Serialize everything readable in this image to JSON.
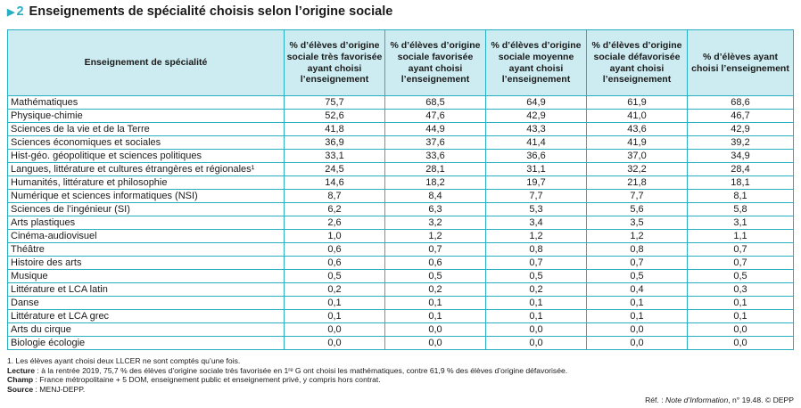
{
  "title": {
    "number": "2",
    "text": "Enseignements de spécialité choisis selon l’origine sociale"
  },
  "table": {
    "headers": [
      "Enseignement de spécialité",
      "% d’élèves d’origine sociale très favorisée ayant choisi l’enseignement",
      "% d’élèves d’origine sociale favorisée ayant choisi l’enseignement",
      "% d’élèves d’origine sociale moyenne ayant choisi l’enseignement",
      "% d’élèves d’origine sociale défavorisée ayant choisi l’enseignement",
      "% d’élèves ayant choisi l’enseignement"
    ],
    "rows": [
      {
        "label": "Mathématiques",
        "values": [
          "75,7",
          "68,5",
          "64,9",
          "61,9",
          "68,6"
        ]
      },
      {
        "label": "Physique-chimie",
        "values": [
          "52,6",
          "47,6",
          "42,9",
          "41,0",
          "46,7"
        ]
      },
      {
        "label": "Sciences de la vie et de la Terre",
        "values": [
          "41,8",
          "44,9",
          "43,3",
          "43,6",
          "42,9"
        ]
      },
      {
        "label": "Sciences économiques et sociales",
        "values": [
          "36,9",
          "37,6",
          "41,4",
          "41,9",
          "39,2"
        ]
      },
      {
        "label": "Hist-géo. géopolitique et sciences politiques",
        "values": [
          "33,1",
          "33,6",
          "36,6",
          "37,0",
          "34,9"
        ]
      },
      {
        "label": "Langues, littérature et cultures étrangères et régionales¹",
        "values": [
          "24,5",
          "28,1",
          "31,1",
          "32,2",
          "28,4"
        ]
      },
      {
        "label": "Humanités, littérature et philosophie",
        "values": [
          "14,6",
          "18,2",
          "19,7",
          "21,8",
          "18,1"
        ]
      },
      {
        "label": "Numérique et sciences informatiques (NSI)",
        "values": [
          "8,7",
          "8,4",
          "7,7",
          "7,7",
          "8,1"
        ]
      },
      {
        "label": "Sciences de l’ingénieur (SI)",
        "values": [
          "6,2",
          "6,3",
          "5,3",
          "5,6",
          "5,8"
        ]
      },
      {
        "label": "Arts plastiques",
        "values": [
          "2,6",
          "3,2",
          "3,4",
          "3,5",
          "3,1"
        ]
      },
      {
        "label": "Cinéma-audiovisuel",
        "values": [
          "1,0",
          "1,2",
          "1,2",
          "1,2",
          "1,1"
        ]
      },
      {
        "label": "Théâtre",
        "values": [
          "0,6",
          "0,7",
          "0,8",
          "0,8",
          "0,7"
        ]
      },
      {
        "label": "Histoire des arts",
        "values": [
          "0,6",
          "0,6",
          "0,7",
          "0,7",
          "0,7"
        ]
      },
      {
        "label": "Musique",
        "values": [
          "0,5",
          "0,5",
          "0,5",
          "0,5",
          "0,5"
        ]
      },
      {
        "label": "Littérature et LCA latin",
        "values": [
          "0,2",
          "0,2",
          "0,2",
          "0,4",
          "0,3"
        ]
      },
      {
        "label": "Danse",
        "values": [
          "0,1",
          "0,1",
          "0,1",
          "0,1",
          "0,1"
        ]
      },
      {
        "label": "Littérature et LCA grec",
        "values": [
          "0,1",
          "0,1",
          "0,1",
          "0,1",
          "0,1"
        ]
      },
      {
        "label": "Arts du cirque",
        "values": [
          "0,0",
          "0,0",
          "0,0",
          "0,0",
          "0,0"
        ]
      },
      {
        "label": "Biologie écologie",
        "values": [
          "0,0",
          "0,0",
          "0,0",
          "0,0",
          "0,0"
        ]
      }
    ]
  },
  "footnotes": {
    "note1": "1. Les élèves ayant choisi deux LLCER ne sont comptés qu’une fois.",
    "lecture_label": "Lecture",
    "lecture_text": " : à la rentrée 2019, 75,7 % des élèves d’origine sociale très favorisée en 1ʳᵉ G ont choisi les mathématiques, contre 61,9 % des élèves d’origine défavorisée.",
    "champ_label": "Champ",
    "champ_text": " : France métropolitaine + 5 DOM, enseignement public et enseignement privé, y compris hors contrat.",
    "source_label": "Source",
    "source_text": " : MENJ-DEPP."
  },
  "reference": {
    "prefix": "Réf. : ",
    "italic": "Note d’Information",
    "suffix": ", n° 19.48. © DEPP"
  },
  "colors": {
    "accent": "#2aaec2",
    "header_bg": "#ccecf1"
  }
}
